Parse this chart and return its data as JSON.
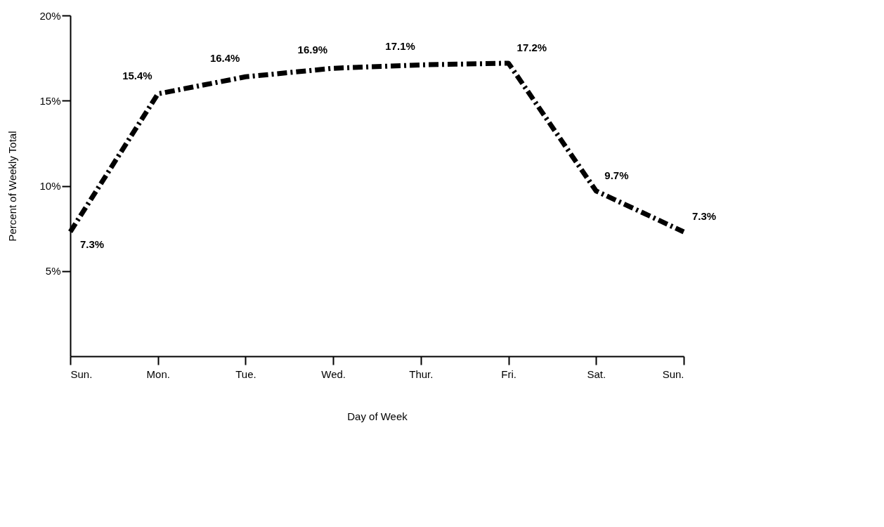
{
  "chart_data": {
    "type": "line",
    "xlabel": "Day of Week",
    "ylabel": "Percent of Weekly Total",
    "categories": [
      "Sun.",
      "Mon.",
      "Tue.",
      "Wed.",
      "Thur.",
      "Fri.",
      "Sat.",
      "Sun."
    ],
    "series": [
      {
        "color": "#000000",
        "values": [
          7.3,
          15.4,
          16.4,
          16.9,
          17.1,
          17.2,
          9.7,
          7.3
        ],
        "value_labels": [
          "7.3%",
          "15.4%",
          "16.4%",
          "16.9%",
          "17.1%",
          "17.2%",
          "9.7%",
          "7.3%"
        ]
      }
    ],
    "ylim": [
      0,
      20
    ],
    "yticks": [
      {
        "value": 5,
        "label": "5%"
      },
      {
        "value": 10,
        "label": "10%"
      },
      {
        "value": 15,
        "label": "15%"
      },
      {
        "value": 20,
        "label": "20%"
      }
    ],
    "marker": "none",
    "line_style": "dashed"
  }
}
